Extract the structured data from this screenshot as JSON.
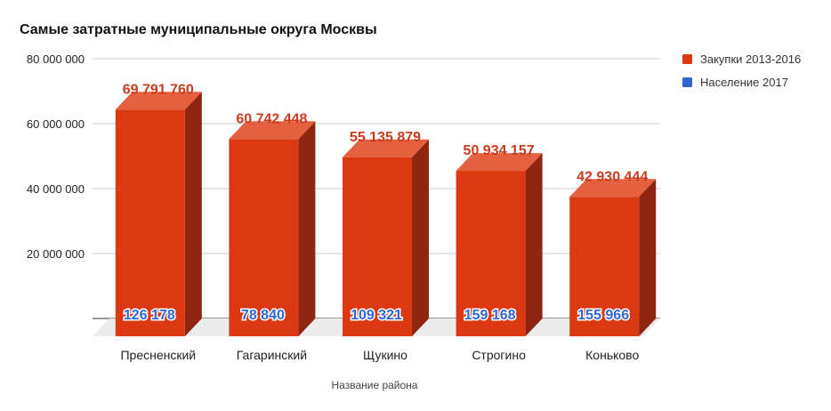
{
  "chart_data": {
    "type": "bar",
    "title": "Самые затратные муниципальные округа Москвы",
    "xlabel": "Название района",
    "ylabel": "",
    "categories": [
      "Пресненский",
      "Гагаринский",
      "Щукино",
      "Строгино",
      "Коньково"
    ],
    "series": [
      {
        "name": "Закупки 2013-2016",
        "color": "#dc3912",
        "values": [
          69791760,
          60742448,
          55135879,
          50934157,
          42930444
        ],
        "labels": [
          "69 791 760",
          "60 742 448",
          "55 135 879",
          "50 934 157",
          "42 930 444"
        ]
      },
      {
        "name": "Население 2017",
        "color": "#3366cc",
        "values": [
          126178,
          78840,
          109321,
          159168,
          155966
        ],
        "labels": [
          "126 178",
          "78 840",
          "109 321",
          "159 168",
          "155 966"
        ]
      }
    ],
    "ylim": [
      0,
      80000000
    ],
    "yticks": [
      20000000,
      40000000,
      60000000,
      80000000
    ],
    "ytick_labels": [
      "20 000 000",
      "40 000 000",
      "60 000 000",
      "80 000 000"
    ],
    "grid": true,
    "legend": "right",
    "style": "3d"
  }
}
